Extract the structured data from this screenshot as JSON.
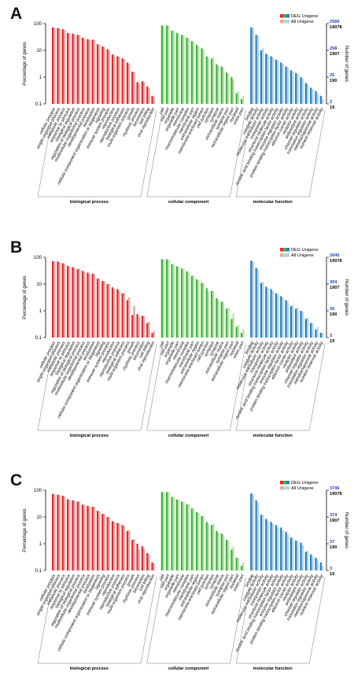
{
  "chart_data": [
    {
      "type": "bar",
      "panel": "A",
      "ylabel": "Percentage of genes",
      "ylabel_right": "Number of genes",
      "yscale": "log",
      "ylim": [
        0.1,
        100
      ],
      "yticks": [
        "100",
        "10",
        "1",
        "0.1"
      ],
      "right_ticks": [
        {
          "deg": "2589",
          "all": "19078"
        },
        {
          "deg": "258",
          "all": "1907"
        },
        {
          "deg": "25",
          "all": "190"
        },
        {
          "deg": "2",
          "all": "19"
        }
      ],
      "legend": [
        {
          "name": "DEG Unigene",
          "colors": [
            "#e8262a",
            "#3fb33f",
            "#2a7fc0"
          ]
        },
        {
          "name": "All Unigene",
          "colors": [
            "#f6a3a3",
            "#b7e3a6",
            "#a9d3ef"
          ]
        }
      ],
      "groups": [
        {
          "name": "biological process",
          "color": "#e8262a",
          "light": "#f6a3a3",
          "categories": [
            "cellular process",
            "single-organism process",
            "metabolic process",
            "response to stimulus",
            "biological regulation",
            "regulation of biological process",
            "multicellular organismal process",
            "developmental process",
            "localization",
            "cellular component organization or biogenesis",
            "signaling",
            "immune system process",
            "reproduction",
            "reproductive process",
            "biological adhesion",
            "multi-organism process",
            "growth",
            "rhythmic process",
            "locomotion",
            "cell killing",
            "viral reproduction"
          ],
          "deg": [
            72,
            68,
            62,
            45,
            42,
            38,
            30,
            26,
            25,
            17,
            14,
            11,
            7,
            6,
            5,
            3.5,
            1.6,
            0.65,
            0.7,
            0.45,
            0.2
          ],
          "all": [
            70,
            66,
            58,
            44,
            40,
            37,
            28,
            25,
            24,
            16,
            13,
            10,
            6.5,
            5.8,
            4.6,
            3.2,
            1.5,
            0.6,
            0.65,
            0.4,
            0.18
          ]
        },
        {
          "name": "cellular component",
          "color": "#3fb33f",
          "light": "#b7e3a6",
          "categories": [
            "cell",
            "cell part",
            "organelle",
            "organelle part",
            "membrane",
            "macromolecular complex",
            "membrane part",
            "extracellular region",
            "membrane-enclosed lumen",
            "cell junction",
            "symplast",
            "synapse",
            "extracellular matrix",
            "synapse part",
            "extracellular region part",
            "nucleoid",
            "virion part"
          ],
          "deg": [
            85,
            85,
            55,
            45,
            38,
            30,
            22,
            16,
            12,
            6,
            5,
            3,
            2.5,
            1.5,
            1.0,
            0.25,
            0.15
          ],
          "all": [
            84,
            84,
            54,
            44,
            37,
            29,
            21,
            14,
            11,
            5.5,
            5.5,
            2.6,
            2.2,
            1.3,
            0.8,
            0.3,
            0.2
          ]
        },
        {
          "name": "molecular function",
          "color": "#2a7fc0",
          "light": "#a9d3ef",
          "categories": [
            "binding",
            "catalytic activity",
            "molecular transducer activity",
            "transporter activity",
            "structural molecule activity",
            "nucleic acid binding transcription factor activity",
            "enzyme regulator activity",
            "protein binding transcription factor activity",
            "electron carrier activity",
            "receptor activity",
            "antioxidant activity",
            "channel regulator activity",
            "translation regulator activity",
            "metallochaperone activity",
            "nutrient reservoir activity"
          ],
          "deg": [
            72,
            38,
            10,
            7.5,
            6,
            4.5,
            3.5,
            2.5,
            1.8,
            1.4,
            1.0,
            0.6,
            0.4,
            0.3,
            0.2
          ],
          "all": [
            70,
            36,
            12,
            7,
            5.5,
            4.2,
            3.2,
            2.3,
            1.6,
            1.3,
            0.9,
            0.55,
            0.35,
            0.25,
            0.15
          ]
        }
      ]
    },
    {
      "type": "bar",
      "panel": "B",
      "ylabel": "Percentage of genes",
      "ylabel_right": "Number of genes",
      "yscale": "log",
      "ylim": [
        0.1,
        100
      ],
      "yticks": [
        "100",
        "10",
        "1",
        "0.1"
      ],
      "right_ticks": [
        {
          "deg": "3040",
          "all": "19078"
        },
        {
          "deg": "304",
          "all": "1907"
        },
        {
          "deg": "30",
          "all": "190"
        },
        {
          "deg": "3",
          "all": "19"
        }
      ],
      "legend": [
        {
          "name": "DEG Unigene",
          "colors": [
            "#e8262a",
            "#3fb33f",
            "#2a7fc0"
          ]
        },
        {
          "name": "All Unigene",
          "colors": [
            "#f6a3a3",
            "#b7e3a6",
            "#a9d3ef"
          ]
        }
      ],
      "groups": [
        {
          "name": "biological process",
          "color": "#e8262a",
          "light": "#f6a3a3",
          "categories": [
            "cellular process",
            "single-organism process",
            "metabolic process",
            "response to stimulus",
            "biological regulation",
            "regulation of biological process",
            "multicellular organismal process",
            "developmental process",
            "localization",
            "cellular component organization or biogenesis",
            "signaling",
            "immune system process",
            "reproduction",
            "reproductive process",
            "biological adhesion",
            "multi-organism process",
            "growth",
            "rhythmic process",
            "locomotion",
            "cell killing",
            "viral reproduction"
          ],
          "deg": [
            72,
            70,
            60,
            48,
            43,
            36,
            31,
            27,
            24,
            16,
            13,
            10,
            7.5,
            6.5,
            4.5,
            2.5,
            0.7,
            0.75,
            0.65,
            0.35,
            0.15
          ],
          "all": [
            70,
            66,
            58,
            44,
            40,
            37,
            28,
            25,
            24,
            16,
            13,
            10,
            6.5,
            5.8,
            4.6,
            3.2,
            1.5,
            0.6,
            0.65,
            0.4,
            0.18
          ]
        },
        {
          "name": "cellular component",
          "color": "#3fb33f",
          "light": "#b7e3a6",
          "categories": [
            "cell",
            "cell part",
            "organelle",
            "organelle part",
            "membrane",
            "macromolecular complex",
            "membrane part",
            "extracellular region",
            "membrane-enclosed lumen",
            "cell junction",
            "symplast",
            "synapse",
            "extracellular matrix",
            "synapse part",
            "extracellular region part",
            "nucleoid",
            "virion part"
          ],
          "deg": [
            85,
            85,
            55,
            46,
            38,
            30,
            20,
            15,
            11,
            7,
            5.5,
            3,
            2.2,
            1.2,
            0.5,
            0.25,
            0.15
          ],
          "all": [
            84,
            84,
            54,
            44,
            37,
            29,
            21,
            14,
            11,
            5.5,
            5.5,
            2.6,
            2.2,
            1.3,
            0.8,
            0.3,
            0.2
          ]
        },
        {
          "name": "molecular function",
          "color": "#2a7fc0",
          "light": "#a9d3ef",
          "categories": [
            "binding",
            "catalytic activity",
            "molecular transducer activity",
            "transporter activity",
            "structural molecule activity",
            "nucleic acid binding transcription factor activity",
            "enzyme regulator activity",
            "protein binding transcription factor activity",
            "electron carrier activity",
            "receptor activity",
            "antioxidant activity",
            "channel regulator activity",
            "translation regulator activity",
            "metallochaperone activity",
            "nutrient reservoir activity"
          ],
          "deg": [
            75,
            40,
            11,
            8,
            6.5,
            4.5,
            3.5,
            2.5,
            1.5,
            1.2,
            1.0,
            0.5,
            0.35,
            0.2,
            0.15
          ],
          "all": [
            70,
            36,
            12,
            7,
            5.5,
            4.2,
            3.2,
            2.3,
            1.6,
            1.3,
            0.9,
            0.55,
            0.35,
            0.25,
            0.15
          ]
        }
      ]
    },
    {
      "type": "bar",
      "panel": "C",
      "ylabel": "Percentage of genes",
      "ylabel_right": "Number of genes",
      "yscale": "log",
      "ylim": [
        0.1,
        100
      ],
      "yticks": [
        "100",
        "10",
        "1",
        "0.1"
      ],
      "right_ticks": [
        {
          "deg": "3746",
          "all": "19078"
        },
        {
          "deg": "374",
          "all": "1907"
        },
        {
          "deg": "37",
          "all": "190"
        },
        {
          "deg": "3",
          "all": "19"
        }
      ],
      "legend": [
        {
          "name": "DEG Unigene",
          "colors": [
            "#e8262a",
            "#3fb33f",
            "#2a7fc0"
          ]
        },
        {
          "name": "All Unigene",
          "colors": [
            "#f6a3a3",
            "#b7e3a6",
            "#a9d3ef"
          ]
        }
      ],
      "groups": [
        {
          "name": "biological process",
          "color": "#e8262a",
          "light": "#f6a3a3",
          "categories": [
            "cellular process",
            "single-organism process",
            "metabolic process",
            "response to stimulus",
            "biological regulation",
            "regulation of biological process",
            "multicellular organismal process",
            "developmental process",
            "localization",
            "cellular component organization or biogenesis",
            "signaling",
            "immune system process",
            "reproduction",
            "reproductive process",
            "biological adhesion",
            "multi-organism process",
            "growth",
            "rhythmic process",
            "locomotion",
            "cell killing",
            "viral reproduction"
          ],
          "deg": [
            73,
            68,
            62,
            46,
            42,
            38,
            29,
            26,
            24,
            17,
            13,
            10,
            7,
            6,
            5,
            3,
            1.4,
            1.0,
            0.8,
            0.45,
            0.2
          ],
          "all": [
            70,
            66,
            58,
            44,
            40,
            37,
            28,
            25,
            24,
            16,
            13,
            10,
            6.5,
            5.8,
            4.6,
            3.2,
            1.5,
            0.6,
            0.65,
            0.4,
            0.18
          ]
        },
        {
          "name": "cellular component",
          "color": "#3fb33f",
          "light": "#b7e3a6",
          "categories": [
            "cell",
            "cell part",
            "organelle",
            "organelle part",
            "membrane",
            "macromolecular complex",
            "membrane part",
            "extracellular region",
            "membrane-enclosed lumen",
            "cell junction",
            "symplast",
            "synapse",
            "extracellular matrix",
            "synapse part",
            "extracellular region part",
            "nucleoid",
            "virion part"
          ],
          "deg": [
            85,
            85,
            56,
            45,
            37,
            30,
            21,
            15,
            11,
            6.5,
            5,
            3,
            2.4,
            1.4,
            0.6,
            0.3,
            0.15
          ],
          "all": [
            84,
            84,
            54,
            44,
            37,
            29,
            21,
            14,
            11,
            5.5,
            5.5,
            2.6,
            2.2,
            1.3,
            0.8,
            0.3,
            0.2
          ]
        },
        {
          "name": "molecular function",
          "color": "#2a7fc0",
          "light": "#a9d3ef",
          "categories": [
            "binding",
            "catalytic activity",
            "molecular transducer activity",
            "transporter activity",
            "structural molecule activity",
            "nucleic acid binding transcription factor activity",
            "enzyme regulator activity",
            "protein binding transcription factor activity",
            "electron carrier activity",
            "receptor activity",
            "antioxidant activity",
            "channel regulator activity",
            "translation regulator activity",
            "metallochaperone activity",
            "nutrient reservoir activity"
          ],
          "deg": [
            76,
            42,
            12,
            8.5,
            6.5,
            5,
            4,
            2.8,
            1.7,
            1.3,
            1.1,
            0.5,
            0.4,
            0.3,
            0.2
          ],
          "all": [
            70,
            36,
            12,
            7,
            5.5,
            4.2,
            3.2,
            2.3,
            1.6,
            1.3,
            0.9,
            0.55,
            0.35,
            0.25,
            0.15
          ]
        }
      ]
    }
  ]
}
